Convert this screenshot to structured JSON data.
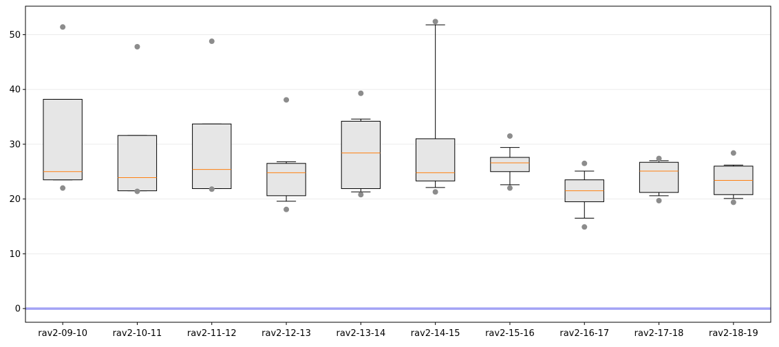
{
  "chart_data": {
    "type": "box",
    "title": "",
    "xlabel": "",
    "ylabel": "",
    "ylim": [
      -2.5,
      55.2
    ],
    "yticks": [
      0,
      10,
      20,
      30,
      40,
      50
    ],
    "grid": "horizontal",
    "reference_line": {
      "y": 0,
      "color": "#a3a3f5"
    },
    "colors": {
      "box_fill": "#e6e6e6",
      "box_edge": "#000000",
      "median": "#ff7f0e",
      "outlier": "#8c8c8c",
      "grid": "#ebebeb"
    },
    "categories": [
      "rav2-09-10",
      "rav2-10-11",
      "rav2-11-12",
      "rav2-12-13",
      "rav2-13-14",
      "rav2-14-15",
      "rav2-15-16",
      "rav2-16-17",
      "rav2-17-18",
      "rav2-18-19"
    ],
    "boxes": [
      {
        "whislo": 23.5,
        "q1": 23.5,
        "med": 25.0,
        "q3": 38.2,
        "whishi": 38.2,
        "fliers": [
          22.0,
          51.4
        ]
      },
      {
        "whislo": 21.5,
        "q1": 21.5,
        "med": 23.9,
        "q3": 31.6,
        "whishi": 31.6,
        "fliers": [
          21.4,
          47.8
        ]
      },
      {
        "whislo": 21.9,
        "q1": 21.9,
        "med": 25.4,
        "q3": 33.7,
        "whishi": 33.7,
        "fliers": [
          21.8,
          48.8
        ]
      },
      {
        "whislo": 19.6,
        "q1": 20.6,
        "med": 24.8,
        "q3": 26.5,
        "whishi": 26.8,
        "fliers": [
          18.1,
          38.1
        ]
      },
      {
        "whislo": 21.3,
        "q1": 21.9,
        "med": 28.4,
        "q3": 34.2,
        "whishi": 34.6,
        "fliers": [
          20.8,
          39.3
        ]
      },
      {
        "whislo": 22.1,
        "q1": 23.3,
        "med": 24.8,
        "q3": 31.0,
        "whishi": 51.8,
        "fliers": [
          21.3,
          52.4
        ]
      },
      {
        "whislo": 22.6,
        "q1": 25.0,
        "med": 26.6,
        "q3": 27.6,
        "whishi": 29.4,
        "fliers": [
          22.0,
          31.5
        ]
      },
      {
        "whislo": 16.5,
        "q1": 19.5,
        "med": 21.5,
        "q3": 23.5,
        "whishi": 25.1,
        "fliers": [
          14.9,
          26.5
        ]
      },
      {
        "whislo": 20.6,
        "q1": 21.2,
        "med": 25.1,
        "q3": 26.7,
        "whishi": 27.0,
        "fliers": [
          19.7,
          27.4
        ]
      },
      {
        "whislo": 20.1,
        "q1": 20.8,
        "med": 23.4,
        "q3": 26.0,
        "whishi": 26.2,
        "fliers": [
          19.4,
          28.4
        ]
      }
    ]
  }
}
